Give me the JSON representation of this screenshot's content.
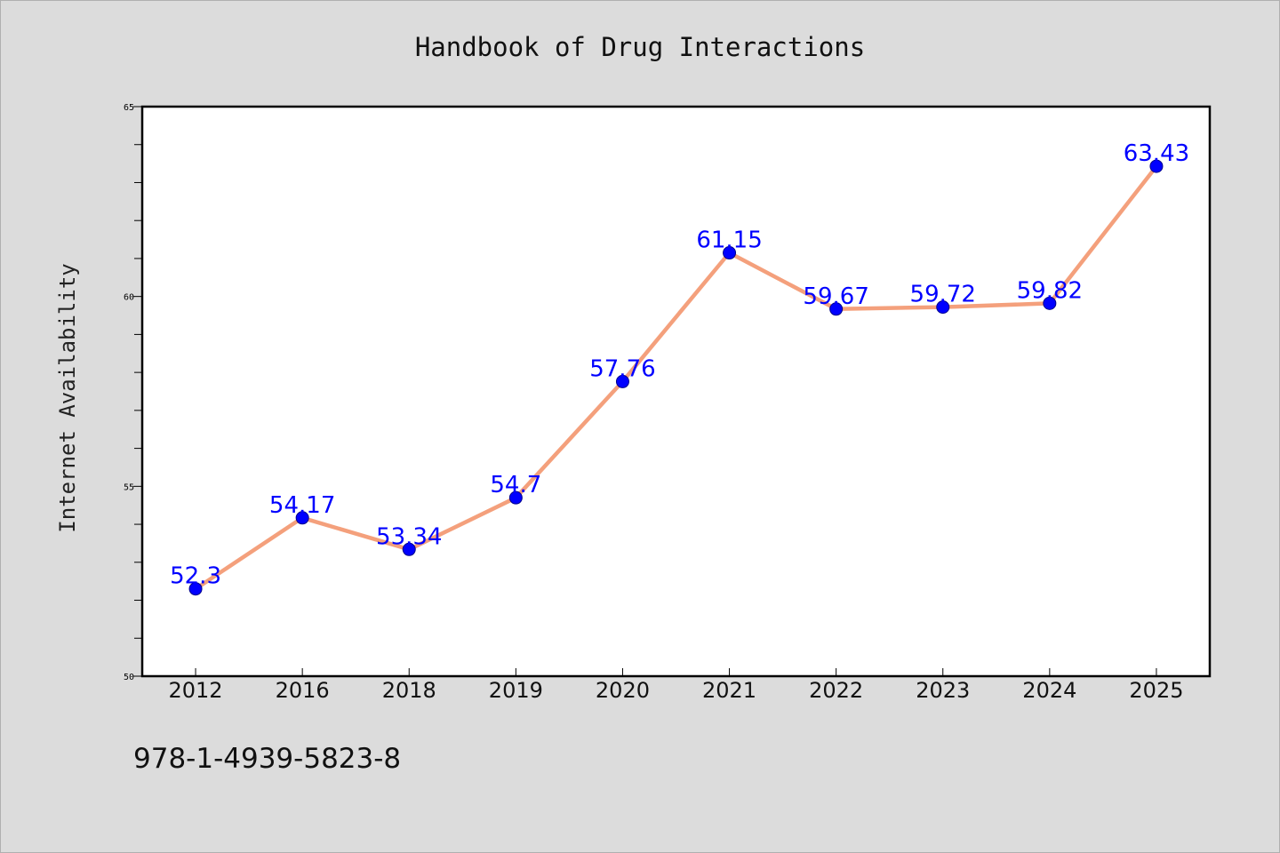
{
  "chart_data": {
    "type": "line",
    "title": "Handbook of Drug Interactions",
    "xlabel": "",
    "ylabel": "Internet Availability",
    "categories": [
      "2012",
      "2016",
      "2018",
      "2019",
      "2020",
      "2021",
      "2022",
      "2023",
      "2024",
      "2025"
    ],
    "series": [
      {
        "values": [
          52.3,
          54.17,
          53.34,
          54.7,
          57.76,
          61.15,
          59.67,
          59.72,
          59.82,
          63.43
        ]
      }
    ],
    "data_labels": [
      "52.3",
      "54.17",
      "53.34",
      "54.7",
      "57.76",
      "61.15",
      "59.67",
      "59.72",
      "59.82",
      "63.43"
    ],
    "ylim": [
      50,
      65
    ],
    "yticks": [
      "50",
      "55",
      "60",
      "65"
    ],
    "grid": false,
    "legend": "none",
    "colors": {
      "line": "#f4a07c",
      "marker": "#0000ff",
      "marker_edge": "#00008b",
      "label": "#0000ff",
      "background": "#dcdcdc",
      "plot_area": "#ffffff"
    }
  },
  "footer": {
    "isbn": "978-1-4939-5823-8"
  }
}
